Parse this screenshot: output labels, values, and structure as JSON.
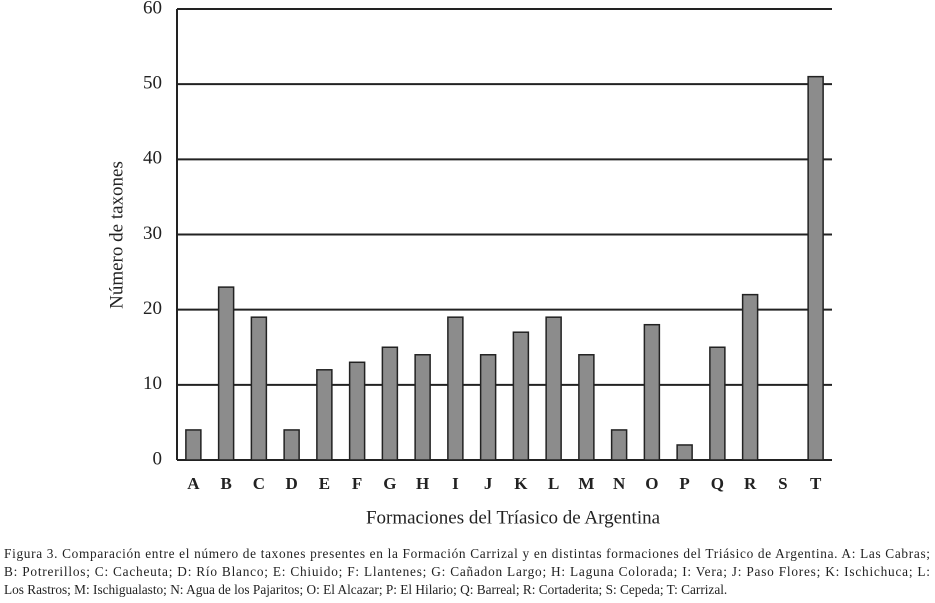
{
  "chart_data": {
    "type": "bar",
    "y_label": "Número de taxones",
    "x_label": "Formaciones del Tríasico de Argentina",
    "categories": [
      "A",
      "B",
      "C",
      "D",
      "E",
      "F",
      "G",
      "H",
      "I",
      "J",
      "K",
      "L",
      "M",
      "N",
      "O",
      "P",
      "Q",
      "R",
      "S",
      "T"
    ],
    "values": [
      4,
      23,
      19,
      4,
      12,
      13,
      15,
      14,
      19,
      14,
      17,
      19,
      14,
      4,
      18,
      2,
      15,
      22,
      0,
      51
    ],
    "color": "#8c8c8c",
    "ylim": [
      0,
      60
    ],
    "yticks": [
      0,
      10,
      20,
      30,
      40,
      50,
      60
    ],
    "grid": true,
    "caption": [
      "Figura 3. Comparación entre el número de taxones presentes en la Formación Carrizal y en distintas formaciones del Triásico de Argentina. A: Las Cabras;",
      "B: Potrerillos; C: Cacheuta; D: Río Blanco; E: Chiuido; F: Llantenes; G: Cañadon Largo; H: Laguna Colorada; I: Vera; J: Paso Flores; K: Ischichuca; L:",
      "Los Rastros; M: Ischigualasto; N: Agua de los Pajaritos; O: El Alcazar; P: El Hilario; Q: Barreal; R: Cortaderita; S: Cepeda; T: Carrizal."
    ]
  }
}
